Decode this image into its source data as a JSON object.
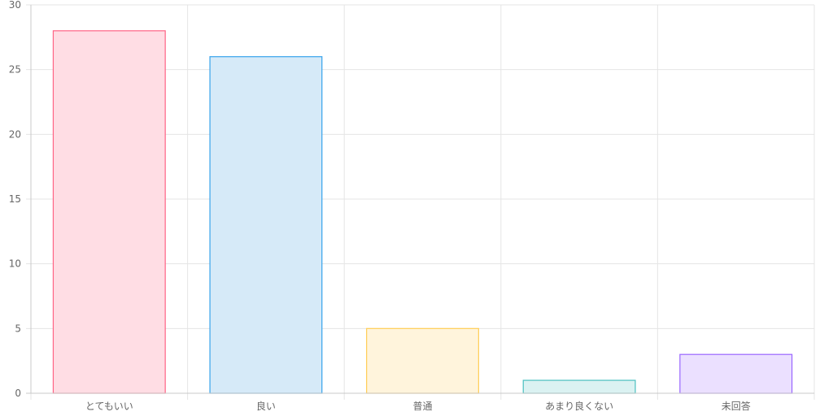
{
  "chart_data": {
    "type": "bar",
    "title": "",
    "xlabel": "",
    "ylabel": "",
    "categories": [
      "とてもいい",
      "良い",
      "普通",
      "あまり良くない",
      "未回答"
    ],
    "values": [
      28,
      26,
      5,
      1,
      3
    ],
    "ylim": [
      0,
      30
    ],
    "yticks": [
      0,
      5,
      10,
      15,
      20,
      25,
      30
    ],
    "grid": true,
    "legend": "none",
    "colors": {
      "fills": [
        "#ffdde4",
        "#d6eaf8",
        "#fff4dc",
        "#dbf2f2",
        "#ebe0ff"
      ],
      "strokes": [
        "#ff6384",
        "#36a2eb",
        "#ffcd56",
        "#4bc0c0",
        "#9966ff"
      ],
      "grid": "#e5e5e5",
      "axis": "#c8c8c8",
      "text": "#666666"
    }
  }
}
